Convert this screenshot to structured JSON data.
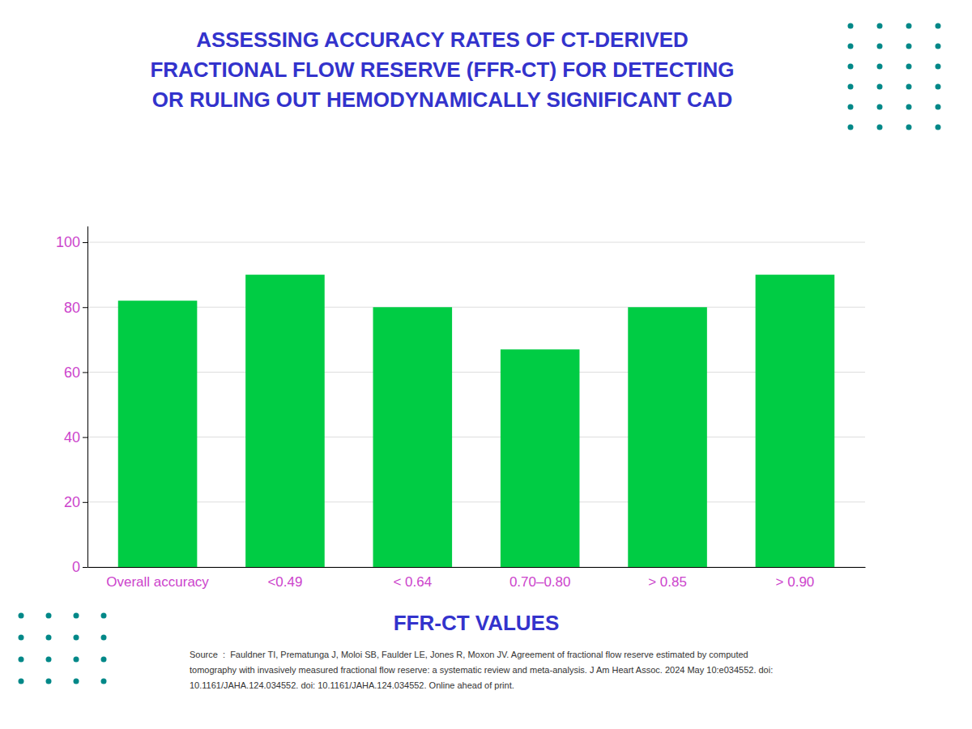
{
  "chart_data": {
    "type": "bar",
    "title": "ASSESSING ACCURACY RATES OF CT-DERIVED\nFRACTIONAL FLOW RESERVE (FFR-CT) FOR DETECTING\nOR RULING OUT HEMODYNAMICALLY SIGNIFICANT CAD",
    "x_label": "FFR-CT VALUES",
    "categories": [
      "Overall accuracy",
      "<0.49",
      "< 0.64",
      "0.70–0.80",
      "> 0.85",
      "> 0.90"
    ],
    "values": [
      82,
      90,
      80,
      67,
      80,
      90
    ],
    "color": "#00cc44",
    "ylim": [
      0,
      105
    ],
    "yticks": [
      0,
      20,
      40,
      60,
      80,
      100
    ],
    "grid": true,
    "annotations": [
      "Source  :  Fauldner TI, Prematunga J, Moloi SB, Faulder LE, Jones R, Moxon JV. Agreement of fractional flow reserve estimated by computed",
      "tomography with invasively measured fractional flow reserve: a systematic review and meta-analysis. J Am Heart Assoc. 2024 May 10:e034552. doi:",
      "10.1161/JAHA.124.034552. doi: 10.1161/JAHA.124.034552. Online ahead of print."
    ]
  }
}
